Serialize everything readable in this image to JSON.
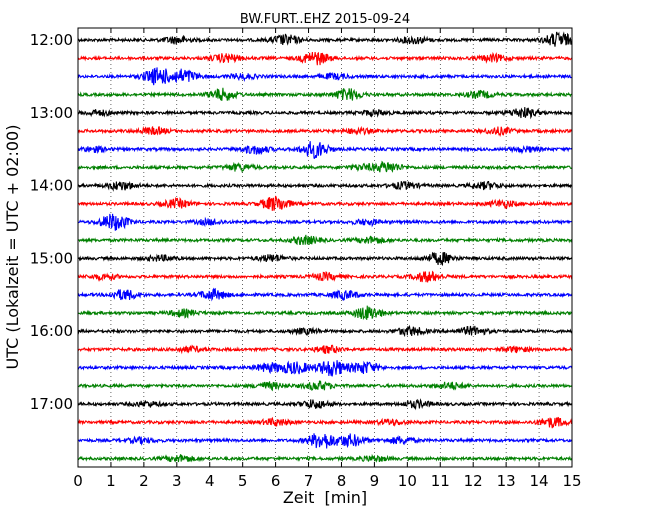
{
  "chart_data": {
    "type": "line",
    "title": "BW.FURT..EHZ 2015-09-24",
    "xlabel": "Zeit  [min]",
    "ylabel": "UTC (Lokalzeit = UTC + 02:00)",
    "xlim": [
      0,
      15
    ],
    "x_ticks": [
      "0",
      "1",
      "2",
      "3",
      "4",
      "5",
      "6",
      "7",
      "8",
      "9",
      "10",
      "11",
      "12",
      "13",
      "14",
      "15"
    ],
    "y_ticks": [
      "12:00",
      "13:00",
      "14:00",
      "15:00",
      "16:00",
      "17:00"
    ],
    "grid": "vertical dotted",
    "trace_interval_min": 15,
    "color_cycle": [
      "#000000",
      "#ff0000",
      "#0000ff",
      "#008000"
    ],
    "series": [
      {
        "start": "12:00",
        "color": "#000000",
        "bursts": [
          [
            6.3,
            0.6
          ],
          [
            14.6,
            0.9
          ],
          [
            3.0,
            0.4
          ],
          [
            10.2,
            0.4
          ]
        ]
      },
      {
        "start": "12:15",
        "color": "#ff0000",
        "bursts": [
          [
            7.2,
            0.8
          ],
          [
            4.5,
            0.5
          ],
          [
            12.6,
            0.4
          ]
        ]
      },
      {
        "start": "12:30",
        "color": "#0000ff",
        "bursts": [
          [
            2.4,
            1.0
          ],
          [
            3.2,
            0.8
          ],
          [
            5.0,
            0.3
          ],
          [
            7.8,
            0.3
          ]
        ]
      },
      {
        "start": "12:45",
        "color": "#008000",
        "bursts": [
          [
            4.4,
            0.7
          ],
          [
            8.2,
            0.7
          ],
          [
            12.2,
            0.4
          ]
        ]
      },
      {
        "start": "13:00",
        "color": "#000000",
        "bursts": [
          [
            13.5,
            0.6
          ],
          [
            0.6,
            0.3
          ],
          [
            9.0,
            0.3
          ]
        ]
      },
      {
        "start": "13:15",
        "color": "#ff0000",
        "bursts": [
          [
            2.3,
            0.4
          ],
          [
            12.8,
            0.4
          ],
          [
            8.5,
            0.3
          ]
        ]
      },
      {
        "start": "13:30",
        "color": "#0000ff",
        "bursts": [
          [
            7.2,
            1.0
          ],
          [
            5.4,
            0.5
          ],
          [
            0.5,
            0.3
          ],
          [
            13.6,
            0.3
          ]
        ]
      },
      {
        "start": "13:45",
        "color": "#008000",
        "bursts": [
          [
            9.4,
            0.6
          ],
          [
            4.9,
            0.4
          ],
          [
            8.6,
            0.3
          ]
        ]
      },
      {
        "start": "14:00",
        "color": "#000000",
        "bursts": [
          [
            1.3,
            0.5
          ],
          [
            9.9,
            0.4
          ],
          [
            12.4,
            0.4
          ]
        ]
      },
      {
        "start": "14:15",
        "color": "#ff0000",
        "bursts": [
          [
            6.0,
            0.9
          ],
          [
            3.0,
            0.5
          ],
          [
            12.9,
            0.4
          ]
        ]
      },
      {
        "start": "14:30",
        "color": "#0000ff",
        "bursts": [
          [
            1.1,
            1.0
          ],
          [
            4.0,
            0.3
          ],
          [
            8.8,
            0.3
          ]
        ]
      },
      {
        "start": "14:45",
        "color": "#008000",
        "bursts": [
          [
            6.9,
            0.5
          ],
          [
            8.9,
            0.4
          ]
        ]
      },
      {
        "start": "15:00",
        "color": "#000000",
        "bursts": [
          [
            11.0,
            0.7
          ],
          [
            5.9,
            0.4
          ],
          [
            2.5,
            0.3
          ]
        ]
      },
      {
        "start": "15:15",
        "color": "#ff0000",
        "bursts": [
          [
            10.6,
            0.6
          ],
          [
            0.8,
            0.3
          ],
          [
            7.5,
            0.4
          ]
        ]
      },
      {
        "start": "15:30",
        "color": "#0000ff",
        "bursts": [
          [
            1.4,
            0.6
          ],
          [
            4.1,
            0.6
          ],
          [
            8.1,
            0.5
          ]
        ]
      },
      {
        "start": "15:45",
        "color": "#008000",
        "bursts": [
          [
            8.8,
            0.8
          ],
          [
            3.2,
            0.4
          ]
        ]
      },
      {
        "start": "16:00",
        "color": "#000000",
        "bursts": [
          [
            10.1,
            0.5
          ],
          [
            12.0,
            0.5
          ],
          [
            6.9,
            0.3
          ]
        ]
      },
      {
        "start": "16:15",
        "color": "#ff0000",
        "bursts": [
          [
            7.6,
            0.4
          ],
          [
            3.4,
            0.3
          ],
          [
            13.3,
            0.3
          ]
        ]
      },
      {
        "start": "16:30",
        "color": "#0000ff",
        "bursts": [
          [
            7.7,
            1.0
          ],
          [
            6.6,
            0.7
          ],
          [
            8.7,
            0.7
          ],
          [
            5.8,
            0.5
          ]
        ]
      },
      {
        "start": "16:45",
        "color": "#008000",
        "bursts": [
          [
            7.3,
            0.5
          ],
          [
            5.8,
            0.4
          ],
          [
            11.3,
            0.4
          ]
        ]
      },
      {
        "start": "17:00",
        "color": "#000000",
        "bursts": [
          [
            7.2,
            0.5
          ],
          [
            10.3,
            0.4
          ],
          [
            2.1,
            0.3
          ]
        ]
      },
      {
        "start": "17:15",
        "color": "#ff0000",
        "bursts": [
          [
            14.4,
            0.6
          ],
          [
            6.0,
            0.4
          ],
          [
            9.5,
            0.3
          ]
        ]
      },
      {
        "start": "17:30",
        "color": "#0000ff",
        "bursts": [
          [
            7.4,
            1.0
          ],
          [
            8.3,
            0.7
          ],
          [
            9.8,
            0.4
          ],
          [
            1.9,
            0.3
          ]
        ]
      },
      {
        "start": "17:45",
        "color": "#008000",
        "bursts": [
          [
            3.1,
            0.4
          ],
          [
            9.0,
            0.3
          ]
        ]
      }
    ]
  }
}
